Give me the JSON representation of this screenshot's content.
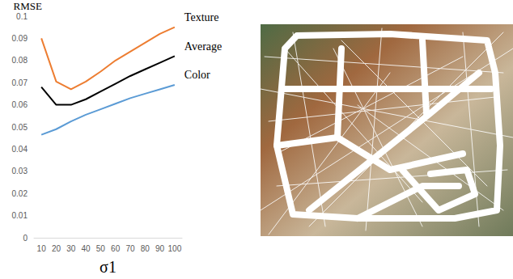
{
  "chart_data": {
    "type": "line",
    "xlabel": "σ1",
    "ylabel": "RMSE",
    "categories": [
      "10",
      "20",
      "30",
      "40",
      "50",
      "60",
      "70",
      "80",
      "90",
      "100"
    ],
    "series": [
      {
        "name": "Texture",
        "color": "#ed7d31",
        "values": [
          0.09,
          0.0705,
          0.067,
          0.0705,
          0.075,
          0.08,
          0.084,
          0.088,
          0.092,
          0.095
        ]
      },
      {
        "name": "Average",
        "color": "#000000",
        "values": [
          0.068,
          0.06,
          0.06,
          0.0625,
          0.066,
          0.0695,
          0.073,
          0.076,
          0.079,
          0.082
        ]
      },
      {
        "name": "Color",
        "color": "#5b9bd5",
        "values": [
          0.0465,
          0.049,
          0.0525,
          0.0555,
          0.058,
          0.0605,
          0.063,
          0.065,
          0.067,
          0.069
        ]
      }
    ],
    "ylim": [
      0,
      0.1
    ],
    "yticks": [
      0,
      0.01,
      0.02,
      0.03,
      0.04,
      0.05,
      0.06,
      0.07,
      0.08,
      0.09,
      0.1
    ],
    "grid": false
  }
}
